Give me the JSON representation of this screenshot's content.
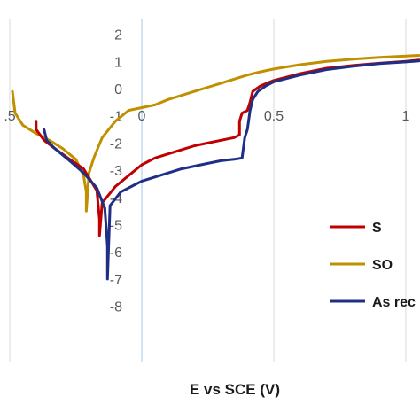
{
  "chart_data": {
    "type": "line",
    "title": "",
    "xlabel": "E vs SCE (V)",
    "ylabel": "",
    "xlim": [
      -0.5,
      1.05
    ],
    "ylim": [
      -8,
      2
    ],
    "grid": "vertical",
    "legend_position": "right",
    "x_ticks": [
      {
        "value": -0.5,
        "label": ".5"
      },
      {
        "value": 0,
        "label": "0"
      },
      {
        "value": 0.5,
        "label": "0.5"
      },
      {
        "value": 1,
        "label": "1"
      }
    ],
    "y_ticks": [
      {
        "value": 2,
        "label": "2"
      },
      {
        "value": 1,
        "label": "1"
      },
      {
        "value": 0,
        "label": "0"
      },
      {
        "value": -1,
        "label": "-1"
      },
      {
        "value": -2,
        "label": "-2"
      },
      {
        "value": -3,
        "label": "-3"
      },
      {
        "value": -4,
        "label": "-4"
      },
      {
        "value": -5,
        "label": "-5"
      },
      {
        "value": -6,
        "label": "-6"
      },
      {
        "value": -7,
        "label": "-7"
      },
      {
        "value": -8,
        "label": "-8"
      }
    ],
    "series": [
      {
        "name": "S",
        "color": "#c00000",
        "x": [
          -0.4,
          -0.4,
          -0.37,
          -0.33,
          -0.28,
          -0.22,
          -0.17,
          -0.16,
          -0.16,
          -0.15,
          -0.1,
          -0.05,
          0,
          0.05,
          0.1,
          0.15,
          0.2,
          0.25,
          0.3,
          0.35,
          0.37,
          0.37,
          0.38,
          0.4,
          0.41,
          0.42,
          0.45,
          0.5,
          0.6,
          0.7,
          0.8,
          0.9,
          1,
          1.05
        ],
        "y": [
          -1.2,
          -1.5,
          -1.9,
          -2.2,
          -2.55,
          -2.95,
          -3.75,
          -4.8,
          -5.4,
          -4.2,
          -3.6,
          -3.2,
          -2.8,
          -2.55,
          -2.4,
          -2.25,
          -2.1,
          -2.0,
          -1.9,
          -1.8,
          -1.7,
          -1.2,
          -0.9,
          -0.8,
          -0.5,
          -0.1,
          0.1,
          0.3,
          0.55,
          0.75,
          0.85,
          0.93,
          1.0,
          1.05
        ]
      },
      {
        "name": "SO",
        "color": "#bf9000",
        "x": [
          -0.49,
          -0.48,
          -0.45,
          -0.4,
          -0.35,
          -0.3,
          -0.25,
          -0.22,
          -0.21,
          -0.21,
          -0.2,
          -0.18,
          -0.15,
          -0.1,
          -0.05,
          0,
          0.05,
          0.1,
          0.15,
          0.2,
          0.25,
          0.3,
          0.35,
          0.4,
          0.45,
          0.5,
          0.55,
          0.6,
          0.7,
          0.8,
          0.9,
          1,
          1.05
        ],
        "y": [
          -0.1,
          -0.9,
          -1.35,
          -1.65,
          -1.9,
          -2.2,
          -2.6,
          -3.2,
          -3.8,
          -4.5,
          -3.1,
          -2.5,
          -1.8,
          -1.2,
          -0.8,
          -0.7,
          -0.6,
          -0.4,
          -0.25,
          -0.1,
          0.05,
          0.2,
          0.35,
          0.5,
          0.62,
          0.72,
          0.8,
          0.88,
          1.0,
          1.08,
          1.15,
          1.2,
          1.22
        ]
      },
      {
        "name": "As rec",
        "color": "#1f2f86",
        "x": [
          -0.37,
          -0.36,
          -0.33,
          -0.28,
          -0.22,
          -0.17,
          -0.14,
          -0.13,
          -0.13,
          -0.12,
          -0.08,
          -0.03,
          0,
          0.05,
          0.1,
          0.15,
          0.2,
          0.25,
          0.3,
          0.35,
          0.38,
          0.39,
          0.4,
          0.41,
          0.42,
          0.44,
          0.47,
          0.5,
          0.6,
          0.7,
          0.8,
          0.9,
          1,
          1.05
        ],
        "y": [
          -1.5,
          -1.9,
          -2.2,
          -2.6,
          -3.1,
          -3.65,
          -4.4,
          -5.8,
          -7.0,
          -4.3,
          -3.8,
          -3.55,
          -3.4,
          -3.25,
          -3.1,
          -2.95,
          -2.85,
          -2.75,
          -2.65,
          -2.6,
          -2.55,
          -1.8,
          -1.5,
          -0.8,
          -0.4,
          -0.1,
          0.1,
          0.25,
          0.5,
          0.7,
          0.82,
          0.92,
          0.98,
          1.02
        ]
      }
    ]
  }
}
